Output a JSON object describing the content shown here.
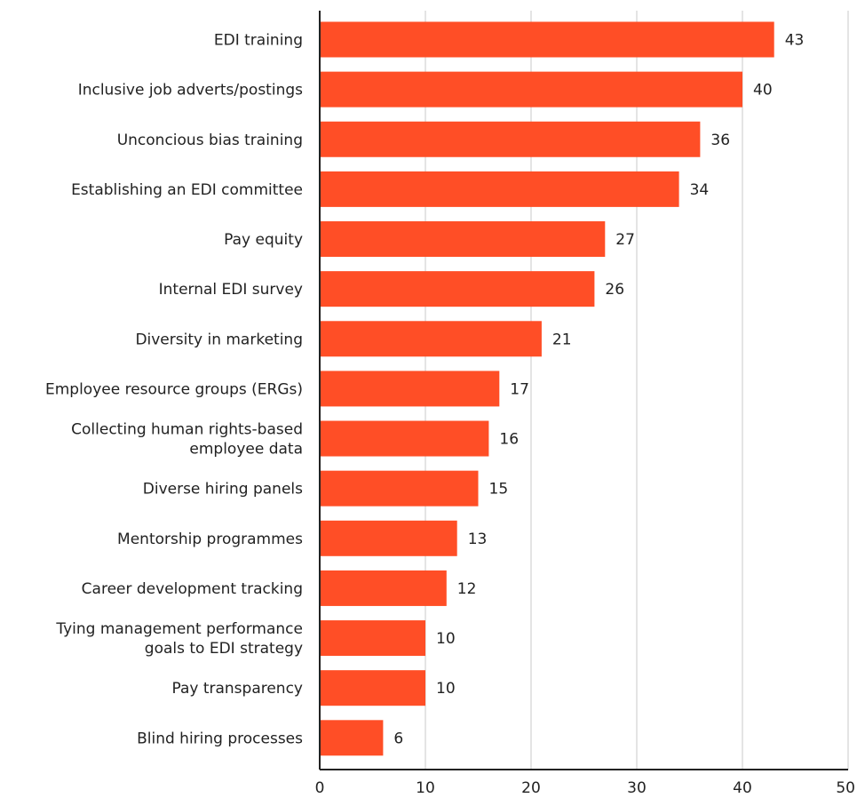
{
  "chart_data": {
    "type": "bar",
    "orientation": "horizontal",
    "title": "",
    "xlabel": "",
    "ylabel": "",
    "xlim": [
      0,
      50
    ],
    "x_ticks": [
      0,
      10,
      20,
      30,
      40,
      50
    ],
    "grid": "vertical",
    "legend": "none",
    "bar_color": "#FF4E26",
    "categories": [
      [
        "EDI training"
      ],
      [
        "Inclusive job adverts/postings"
      ],
      [
        "Unconcious bias training"
      ],
      [
        "Establishing an EDI committee"
      ],
      [
        "Pay equity"
      ],
      [
        "Internal EDI survey"
      ],
      [
        "Diversity in marketing"
      ],
      [
        "Employee resource groups (ERGs)"
      ],
      [
        "Collecting human rights-based",
        "employee data"
      ],
      [
        "Diverse hiring panels"
      ],
      [
        "Mentorship programmes"
      ],
      [
        "Career development tracking"
      ],
      [
        "Tying management performance",
        "goals to EDI strategy"
      ],
      [
        "Pay transparency"
      ],
      [
        "Blind hiring processes"
      ]
    ],
    "values": [
      43,
      40,
      36,
      34,
      27,
      26,
      21,
      17,
      16,
      15,
      13,
      12,
      10,
      10,
      6
    ]
  }
}
